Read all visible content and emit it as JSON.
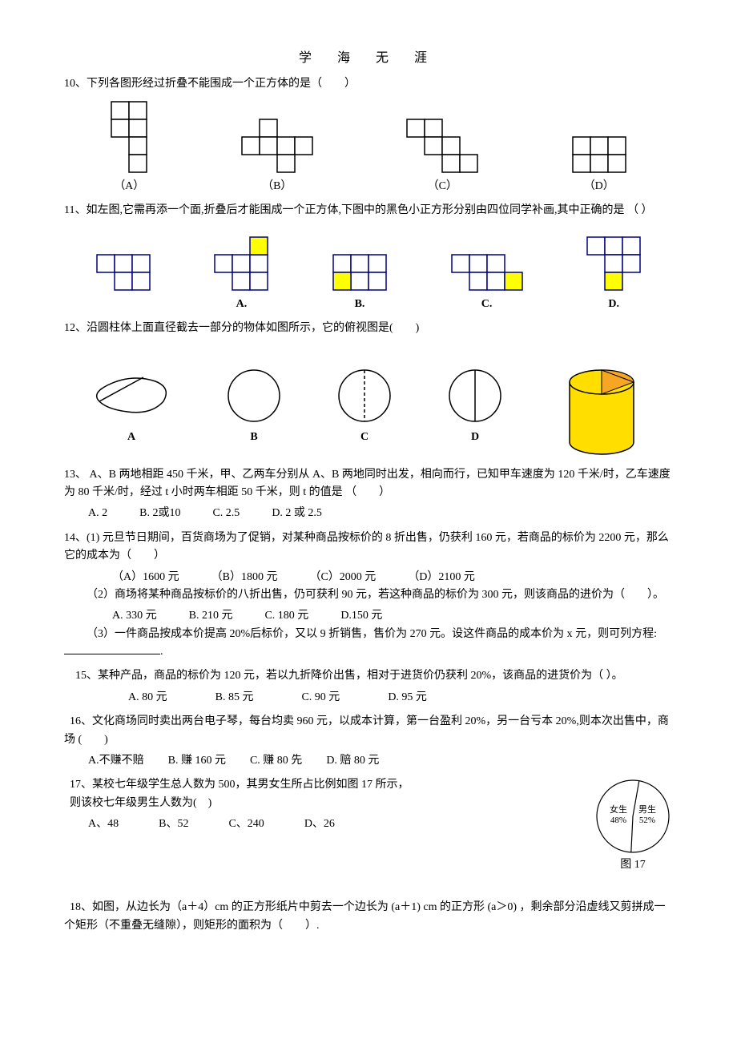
{
  "header": "学 海 无 涯",
  "q10": {
    "text": "10、下列各图形经过折叠不能围成一个正方体的是（　　）",
    "labels": [
      "（A）",
      "（B）",
      "（C）",
      "（D）"
    ],
    "cell": 22,
    "stroke": "#000000",
    "nets": {
      "A": [
        [
          0,
          0
        ],
        [
          1,
          0
        ],
        [
          0,
          1
        ],
        [
          1,
          1
        ],
        [
          1,
          2
        ],
        [
          1,
          3
        ]
      ],
      "B": [
        [
          1,
          0
        ],
        [
          0,
          1
        ],
        [
          1,
          1
        ],
        [
          2,
          1
        ],
        [
          3,
          1
        ],
        [
          2,
          2
        ]
      ],
      "C": [
        [
          0,
          0
        ],
        [
          1,
          0
        ],
        [
          1,
          1
        ],
        [
          2,
          1
        ],
        [
          2,
          2
        ],
        [
          3,
          2
        ]
      ],
      "D": [
        [
          0,
          0
        ],
        [
          1,
          0
        ],
        [
          2,
          0
        ],
        [
          0,
          1
        ],
        [
          1,
          1
        ],
        [
          2,
          1
        ]
      ]
    }
  },
  "q11": {
    "text": "11、如左图,它需再添一个面,折叠后才能围成一个正方体,下图中的黑色小正方形分别由四位同学补画,其中正确的是 （  ）",
    "labels": [
      "A.",
      "B.",
      "C.",
      "D."
    ],
    "cell": 22,
    "stroke": "#000080",
    "fill": "#ffff00",
    "base": [
      [
        0,
        0
      ],
      [
        1,
        0
      ],
      [
        2,
        0
      ],
      [
        1,
        1
      ],
      [
        2,
        1
      ]
    ],
    "added": {
      "A": [
        2,
        -1
      ],
      "B": [
        0,
        1
      ],
      "C": [
        3,
        1
      ],
      "D": [
        1,
        2
      ]
    }
  },
  "q12": {
    "text": "12、沿圆柱体上面直径截去一部分的物体如图所示，它的俯视图是(　　)",
    "labels": [
      "A",
      "B",
      "C",
      "D"
    ],
    "circle_r": 32,
    "stroke": "#000000",
    "cylinder_fill": "#ffde00",
    "cylinder_top": "#f5a623"
  },
  "q13": {
    "text": "13、 A、B 两地相距 450 千米，甲、乙两车分别从 A、B 两地同时出发，相向而行，已知甲车速度为 120 千米/时，乙车速度为 80 千米/时，经过 t 小时两车相距 50 千米，则 t 的值是 （　　）",
    "options": [
      "A. 2",
      "B. 2或10",
      "C. 2.5",
      "D. 2 或 2.5"
    ]
  },
  "q14": {
    "p1": "14、(1) 元旦节日期间，百货商场为了促销，对某种商品按标价的 8 折出售，仍获利 160 元，若商品的标价为 2200 元，那么它的成本为（　　）",
    "p1_options": [
      "（A）1600 元",
      "（B）1800 元",
      "（C）2000 元",
      "（D）2100 元"
    ],
    "p2": "（2）商场将某种商品按标价的八折出售，仍可获利 90 元，若这种商品的标价为 300 元，则该商品的进价为（　　）。",
    "p2_options": [
      "A. 330 元",
      "B. 210 元",
      "C. 180 元",
      "D.150 元"
    ],
    "p3_pre": "（3）一件商品按成本价提高 20%后标价，又以 9 折销售，售价为 270 元。设这件商品的成本价为 x 元，则可列方程: ",
    "p3_post": "."
  },
  "q15": {
    "text": "15、某种产品，商品的标价为 120 元，若以九折降价出售，相对于进货价仍获利 20%，该商品的进货价为（  ）。",
    "options": [
      "A. 80 元",
      "B. 85 元",
      "C. 90 元",
      "D. 95 元"
    ]
  },
  "q16": {
    "text": "16、文化商场同时卖出两台电子琴，每台均卖 960 元，以成本计算，第一台盈利 20%，另一台亏本 20%,则本次出售中，商场  (　　)",
    "options": [
      "A.不赚不赔",
      "B. 赚 160 元",
      "C. 赚 80 先",
      "D. 赔 80 元"
    ]
  },
  "q17": {
    "text1": "17、某校七年级学生总人数为 500，其男女生所占比例如图 17 所示，",
    "text2": "则该校七年级男生人数为(　)",
    "options": [
      "A、48",
      "B、52",
      "C、240",
      "D、26"
    ],
    "chart": {
      "female_label": "女生",
      "female_pct": "48%",
      "male_label": "男生",
      "male_pct": "52%",
      "caption": "图 17",
      "r": 45,
      "stroke": "#000000",
      "female_angle_deg": 172.8,
      "start_angle_deg": -80
    }
  },
  "q18": {
    "text": "18、如图，从边长为（a＋4）cm 的正方形纸片中剪去一个边长为 (a＋1) cm 的正方形 (a＞0) ，剩余部分沿虚线又剪拼成一个矩形（不重叠无缝隙），则矩形的面积为（　　）."
  }
}
